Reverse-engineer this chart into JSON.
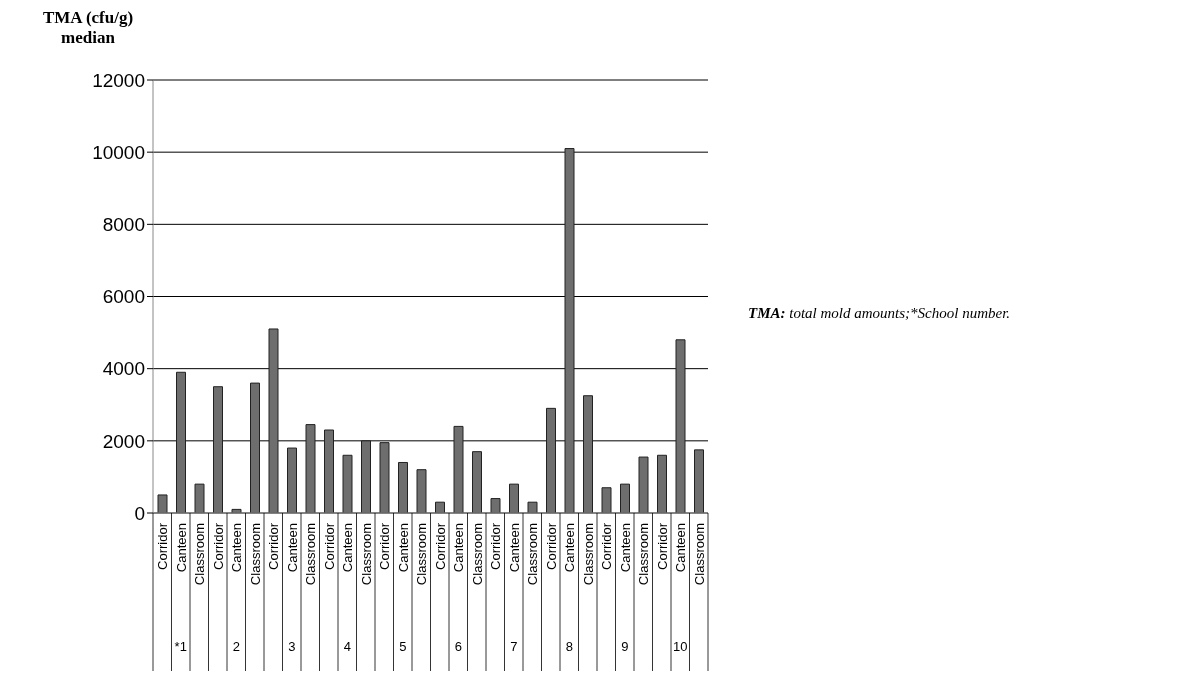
{
  "chart_data": {
    "type": "bar",
    "ylabel": "TMA (cfu/g) median",
    "categories": [
      "Corridor",
      "Canteen",
      "Classroom",
      "Corridor",
      "Canteen",
      "Classroom",
      "Corridor",
      "Canteen",
      "Classroom",
      "Corridor",
      "Canteen",
      "Classroom",
      "Corridor",
      "Canteen",
      "Classroom",
      "Corridor",
      "Canteen",
      "Classroom",
      "Corridor",
      "Canteen",
      "Classroom",
      "Corridor",
      "Canteen",
      "Classroom",
      "Corridor",
      "Canteen",
      "Classroom",
      "Corridor",
      "Canteen",
      "Classroom"
    ],
    "values": [
      500,
      3900,
      800,
      3500,
      100,
      3600,
      5100,
      1800,
      2450,
      2300,
      1600,
      2000,
      1950,
      1400,
      1200,
      300,
      2400,
      1700,
      400,
      800,
      300,
      2900,
      10100,
      3250,
      700,
      800,
      1550,
      1600,
      4800,
      1750
    ],
    "color": "#6e6e6e",
    "ylim": [
      0,
      12000
    ],
    "yticks": [
      0,
      2000,
      4000,
      6000,
      8000,
      10000,
      12000
    ],
    "grid": "y",
    "annotations": [
      "*1",
      "2",
      "3",
      "4",
      "5",
      "6",
      "7",
      "8",
      "9",
      "10",
      "TMA: total mold amounts;*School number."
    ]
  }
}
